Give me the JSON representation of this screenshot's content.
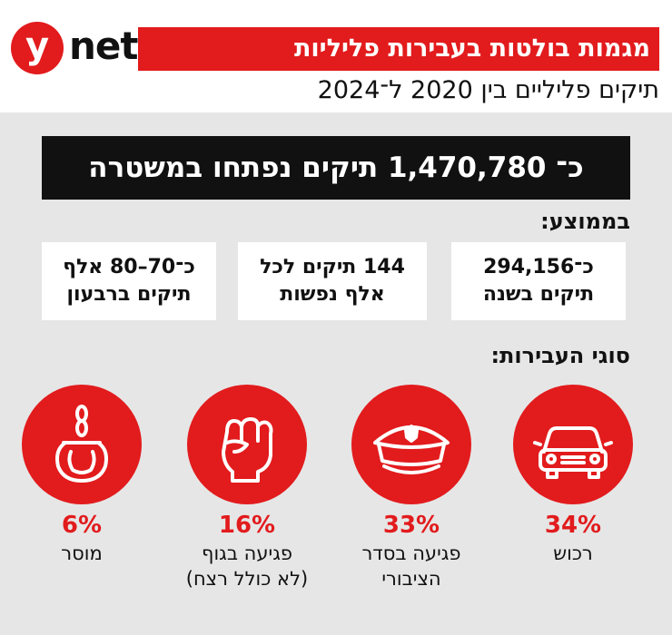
{
  "header": {
    "logo_letter": "y",
    "logo_word": "net",
    "title": "מגמות בולטות בעבירות פליליות",
    "subtitle": "תיקים פליליים בין 2020 ל־2024"
  },
  "total": "כ־ 1,470,780 תיקים נפתחו במשטרה",
  "averages": {
    "label": "בממוצע:",
    "items": [
      {
        "line1": "כ־294,156",
        "line2": "תיקים בשנה"
      },
      {
        "line1": "144 תיקים לכל",
        "line2": "אלף נפשות"
      },
      {
        "line1": "כ־70–80 אלף",
        "line2": "תיקים ברבעון"
      }
    ]
  },
  "offense_types_label": "סוגי העבירות:",
  "colors": {
    "accent": "#e21b1d",
    "panel": "#e6e6e6",
    "dark": "#111111"
  },
  "chart_data": {
    "type": "bar",
    "title": "סוגי העבירות:",
    "categories": [
      "רכוש",
      "פגיעה בסדר הציבורי",
      "פגיעה בגוף (לא כולל רצח)",
      "מוסר"
    ],
    "values": [
      34,
      33,
      16,
      6
    ],
    "unit": "%",
    "items": [
      {
        "percent": "34%",
        "label_lines": [
          "רכוש"
        ],
        "icon": "car-icon"
      },
      {
        "percent": "33%",
        "label_lines": [
          "פגיעה בסדר",
          "הציבורי"
        ],
        "icon": "police-cap-icon"
      },
      {
        "percent": "16%",
        "label_lines": [
          "פגיעה בגוף",
          "(לא כולל רצח)"
        ],
        "icon": "fist-icon"
      },
      {
        "percent": "6%",
        "label_lines": [
          "מוסר"
        ],
        "icon": "handcuffs-icon"
      }
    ]
  }
}
